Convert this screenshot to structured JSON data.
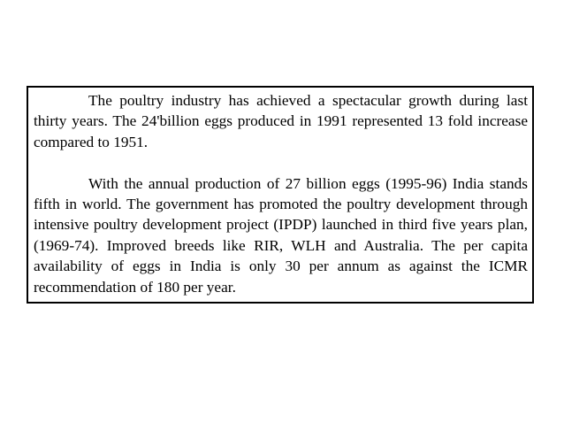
{
  "slide": {
    "paragraphs": [
      "The poultry industry has achieved a spectacular growth during last thirty years. The 24'billion eggs produced in 1991 represented 13 fold increase compared to 1951.",
      "With the annual production of 27 billion eggs (1995-96) India stands fifth in world. The government has promoted the poultry development through intensive poultry development project (IPDP) launched in third five years plan, (1969-74). Improved breeds like RIR, WLH and Australia. The per capita availability of eggs in India is only 30 per annum as against the ICMR recommendation of 180 per year."
    ]
  }
}
